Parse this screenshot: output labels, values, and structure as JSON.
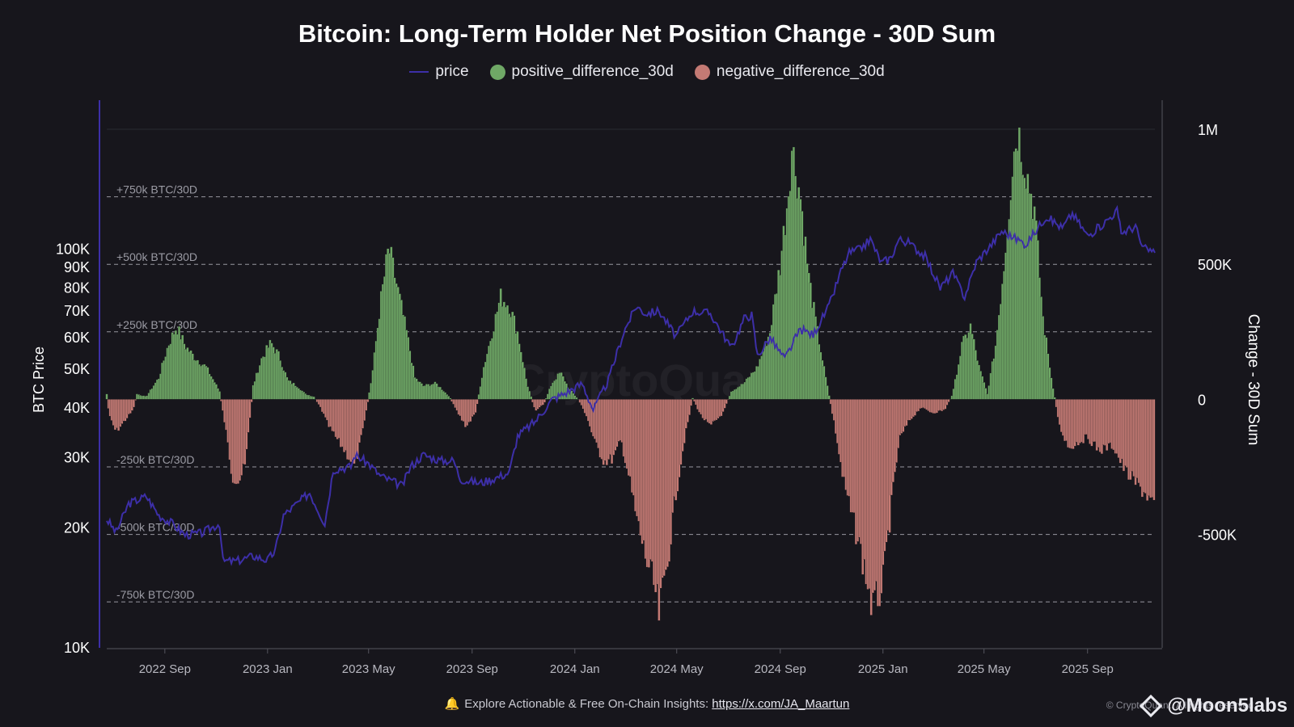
{
  "title": "Bitcoin: Long-Term Holder Net Position Change - 30D Sum",
  "legend": [
    {
      "label": "price",
      "color": "#3d2fa8",
      "shape": "line"
    },
    {
      "label": "positive_difference_30d",
      "color": "#6fa866",
      "shape": "dot"
    },
    {
      "label": "negative_difference_30d",
      "color": "#c47a74",
      "shape": "dot"
    }
  ],
  "footer": {
    "icon": "bell-icon",
    "text": "Explore Actionable & Free On-Chain Insights:",
    "link_text": "https://x.com/JA_Maartun",
    "copyright": "© CryptoQuant. All rights reserved",
    "brand": "@Moon5labs"
  },
  "watermark": "CryptoQuant",
  "chart_data": {
    "type": "bar",
    "title": "Bitcoin: Long-Term Holder Net Position Change - 30D Sum",
    "x_range": [
      "2022-06-24",
      "2025-11-20"
    ],
    "x_ticks": [
      "2022 Sep",
      "2023 Jan",
      "2023 May",
      "2023 Sep",
      "2024 Jan",
      "2024 May",
      "2024 Sep",
      "2025 Jan",
      "2025 May",
      "2025 Sep"
    ],
    "left_axis": {
      "label": "BTC Price",
      "scale": "log",
      "range": [
        10000,
        200000
      ],
      "ticks": [
        10000,
        20000,
        30000,
        40000,
        50000,
        60000,
        70000,
        80000,
        90000,
        100000
      ],
      "tick_labels": [
        "10K",
        "20K",
        "30K",
        "40K",
        "50K",
        "60K",
        "70K",
        "80K",
        "90K",
        "100K"
      ]
    },
    "right_axis": {
      "label": "Change - 30D Sum",
      "range": [
        -920000,
        1000000
      ],
      "ticks": [
        -500000,
        0,
        500000,
        1000000
      ],
      "tick_labels": [
        "-500K",
        "0",
        "500K",
        "1M"
      ]
    },
    "reference_lines": [
      {
        "value": 750000,
        "label": "+750k BTC/30D"
      },
      {
        "value": 500000,
        "label": "+500k BTC/30D"
      },
      {
        "value": 250000,
        "label": "+250k BTC/30D"
      },
      {
        "value": -250000,
        "label": "-250k BTC/30D"
      },
      {
        "value": -500000,
        "label": "-500k BTC/30D"
      },
      {
        "value": -750000,
        "label": "-750k BTC/30D"
      }
    ],
    "price": {
      "name": "price",
      "color": "#3d2fa8",
      "points": [
        [
          "2022-06-24",
          21000
        ],
        [
          "2022-07-05",
          19500
        ],
        [
          "2022-07-20",
          23000
        ],
        [
          "2022-08-10",
          24000
        ],
        [
          "2022-08-25",
          21500
        ],
        [
          "2022-09-10",
          20500
        ],
        [
          "2022-09-25",
          19200
        ],
        [
          "2022-10-15",
          19400
        ],
        [
          "2022-11-05",
          20500
        ],
        [
          "2022-11-09",
          16500
        ],
        [
          "2022-11-25",
          16500
        ],
        [
          "2022-12-15",
          17000
        ],
        [
          "2023-01-01",
          16600
        ],
        [
          "2023-01-10",
          17500
        ],
        [
          "2023-01-20",
          21500
        ],
        [
          "2023-02-05",
          23000
        ],
        [
          "2023-02-20",
          24500
        ],
        [
          "2023-03-10",
          20500
        ],
        [
          "2023-03-20",
          28000
        ],
        [
          "2023-04-10",
          28500
        ],
        [
          "2023-04-15",
          30500
        ],
        [
          "2023-05-01",
          29000
        ],
        [
          "2023-05-15",
          27000
        ],
        [
          "2023-06-10",
          25500
        ],
        [
          "2023-06-20",
          28500
        ],
        [
          "2023-07-05",
          30500
        ],
        [
          "2023-07-25",
          29500
        ],
        [
          "2023-08-10",
          29500
        ],
        [
          "2023-08-18",
          26500
        ],
        [
          "2023-09-10",
          25900
        ],
        [
          "2023-09-25",
          26500
        ],
        [
          "2023-10-15",
          27500
        ],
        [
          "2023-10-25",
          34000
        ],
        [
          "2023-11-15",
          37000
        ],
        [
          "2023-12-05",
          42000
        ],
        [
          "2023-12-20",
          43500
        ],
        [
          "2024-01-10",
          46000
        ],
        [
          "2024-01-23",
          39500
        ],
        [
          "2024-02-10",
          47000
        ],
        [
          "2024-02-28",
          62000
        ],
        [
          "2024-03-14",
          72000
        ],
        [
          "2024-03-25",
          69000
        ],
        [
          "2024-04-10",
          70000
        ],
        [
          "2024-04-30",
          60500
        ],
        [
          "2024-05-20",
          70000
        ],
        [
          "2024-06-10",
          69000
        ],
        [
          "2024-07-05",
          56500
        ],
        [
          "2024-07-20",
          67000
        ],
        [
          "2024-07-29",
          68500
        ],
        [
          "2024-08-05",
          54000
        ],
        [
          "2024-08-20",
          60000
        ],
        [
          "2024-09-06",
          53000
        ],
        [
          "2024-09-25",
          63000
        ],
        [
          "2024-10-10",
          61000
        ],
        [
          "2024-10-29",
          72000
        ],
        [
          "2024-11-12",
          88000
        ],
        [
          "2024-11-22",
          98000
        ],
        [
          "2024-12-05",
          100000
        ],
        [
          "2024-12-17",
          106000
        ],
        [
          "2024-12-30",
          92500
        ],
        [
          "2025-01-10",
          95000
        ],
        [
          "2025-01-20",
          106000
        ],
        [
          "2025-01-31",
          104000
        ],
        [
          "2025-02-20",
          96000
        ],
        [
          "2025-03-10",
          80000
        ],
        [
          "2025-03-25",
          87000
        ],
        [
          "2025-04-08",
          76000
        ],
        [
          "2025-04-22",
          93000
        ],
        [
          "2025-05-12",
          104000
        ],
        [
          "2025-05-22",
          111000
        ],
        [
          "2025-06-20",
          103000
        ],
        [
          "2025-07-14",
          121000
        ],
        [
          "2025-08-02",
          113000
        ],
        [
          "2025-08-14",
          123000
        ],
        [
          "2025-09-01",
          108000
        ],
        [
          "2025-09-20",
          116000
        ],
        [
          "2025-10-06",
          125000
        ],
        [
          "2025-10-11",
          110000
        ],
        [
          "2025-10-28",
          114000
        ],
        [
          "2025-11-05",
          101000
        ],
        [
          "2025-11-20",
          98000
        ]
      ]
    },
    "net_change": {
      "positive_name": "positive_difference_30d",
      "negative_name": "negative_difference_30d",
      "positive_color": "#6fa866",
      "negative_color": "#c47a74",
      "points": [
        [
          "2022-06-24",
          20000
        ],
        [
          "2022-06-27",
          -60000
        ],
        [
          "2022-07-05",
          -120000
        ],
        [
          "2022-07-15",
          -80000
        ],
        [
          "2022-07-25",
          -40000
        ],
        [
          "2022-07-30",
          20000
        ],
        [
          "2022-08-10",
          10000
        ],
        [
          "2022-08-25",
          80000
        ],
        [
          "2022-09-05",
          200000
        ],
        [
          "2022-09-15",
          270000
        ],
        [
          "2022-09-25",
          200000
        ],
        [
          "2022-10-05",
          160000
        ],
        [
          "2022-10-20",
          120000
        ],
        [
          "2022-11-05",
          30000
        ],
        [
          "2022-11-12",
          -100000
        ],
        [
          "2022-11-20",
          -280000
        ],
        [
          "2022-11-28",
          -300000
        ],
        [
          "2022-12-05",
          -250000
        ],
        [
          "2022-12-15",
          50000
        ],
        [
          "2022-12-25",
          150000
        ],
        [
          "2023-01-05",
          210000
        ],
        [
          "2023-01-15",
          160000
        ],
        [
          "2023-01-25",
          70000
        ],
        [
          "2023-02-05",
          50000
        ],
        [
          "2023-02-15",
          20000
        ],
        [
          "2023-02-25",
          10000
        ],
        [
          "2023-03-05",
          -30000
        ],
        [
          "2023-03-15",
          -100000
        ],
        [
          "2023-03-25",
          -150000
        ],
        [
          "2023-04-05",
          -200000
        ],
        [
          "2023-04-15",
          -250000
        ],
        [
          "2023-04-25",
          -100000
        ],
        [
          "2023-05-05",
          80000
        ],
        [
          "2023-05-15",
          350000
        ],
        [
          "2023-05-25",
          560000
        ],
        [
          "2023-06-05",
          400000
        ],
        [
          "2023-06-15",
          250000
        ],
        [
          "2023-06-25",
          80000
        ],
        [
          "2023-07-05",
          50000
        ],
        [
          "2023-07-20",
          60000
        ],
        [
          "2023-08-05",
          10000
        ],
        [
          "2023-08-15",
          -50000
        ],
        [
          "2023-08-25",
          -100000
        ],
        [
          "2023-09-05",
          -50000
        ],
        [
          "2023-09-15",
          120000
        ],
        [
          "2023-09-25",
          250000
        ],
        [
          "2023-10-05",
          380000
        ],
        [
          "2023-10-15",
          350000
        ],
        [
          "2023-10-25",
          250000
        ],
        [
          "2023-11-05",
          60000
        ],
        [
          "2023-11-15",
          -40000
        ],
        [
          "2023-11-25",
          -20000
        ],
        [
          "2023-12-05",
          60000
        ],
        [
          "2023-12-15",
          100000
        ],
        [
          "2023-12-25",
          40000
        ],
        [
          "2024-01-05",
          0
        ],
        [
          "2024-01-15",
          -60000
        ],
        [
          "2024-01-25",
          -160000
        ],
        [
          "2024-02-05",
          -230000
        ],
        [
          "2024-02-15",
          -220000
        ],
        [
          "2024-02-25",
          -150000
        ],
        [
          "2024-03-05",
          -280000
        ],
        [
          "2024-03-15",
          -450000
        ],
        [
          "2024-03-25",
          -580000
        ],
        [
          "2024-04-05",
          -700000
        ],
        [
          "2024-04-10",
          -800000
        ],
        [
          "2024-04-20",
          -600000
        ],
        [
          "2024-04-30",
          -350000
        ],
        [
          "2024-05-10",
          -150000
        ],
        [
          "2024-05-20",
          5000
        ],
        [
          "2024-05-30",
          -60000
        ],
        [
          "2024-06-10",
          -100000
        ],
        [
          "2024-06-25",
          -50000
        ],
        [
          "2024-07-05",
          30000
        ],
        [
          "2024-07-20",
          60000
        ],
        [
          "2024-08-05",
          120000
        ],
        [
          "2024-08-20",
          250000
        ],
        [
          "2024-09-01",
          500000
        ],
        [
          "2024-09-10",
          750000
        ],
        [
          "2024-09-15",
          930000
        ],
        [
          "2024-09-25",
          750000
        ],
        [
          "2024-10-05",
          450000
        ],
        [
          "2024-10-15",
          250000
        ],
        [
          "2024-10-25",
          80000
        ],
        [
          "2024-11-05",
          -100000
        ],
        [
          "2024-11-15",
          -300000
        ],
        [
          "2024-11-25",
          -430000
        ],
        [
          "2024-12-05",
          -550000
        ],
        [
          "2024-12-15",
          -700000
        ],
        [
          "2024-12-20",
          -780000
        ],
        [
          "2025-01-01",
          -680000
        ],
        [
          "2025-01-10",
          -420000
        ],
        [
          "2025-01-20",
          -150000
        ],
        [
          "2025-02-01",
          -80000
        ],
        [
          "2025-02-15",
          -30000
        ],
        [
          "2025-03-01",
          -50000
        ],
        [
          "2025-03-15",
          -40000
        ],
        [
          "2025-03-25",
          20000
        ],
        [
          "2025-04-05",
          200000
        ],
        [
          "2025-04-15",
          270000
        ],
        [
          "2025-04-25",
          120000
        ],
        [
          "2025-05-05",
          20000
        ],
        [
          "2025-05-15",
          200000
        ],
        [
          "2025-05-25",
          500000
        ],
        [
          "2025-06-05",
          900000
        ],
        [
          "2025-06-10",
          1000000
        ],
        [
          "2025-06-20",
          850000
        ],
        [
          "2025-06-30",
          700000
        ],
        [
          "2025-07-10",
          300000
        ],
        [
          "2025-07-20",
          80000
        ],
        [
          "2025-07-30",
          -100000
        ],
        [
          "2025-08-10",
          -180000
        ],
        [
          "2025-08-20",
          -160000
        ],
        [
          "2025-09-01",
          -140000
        ],
        [
          "2025-09-15",
          -190000
        ],
        [
          "2025-10-01",
          -170000
        ],
        [
          "2025-10-15",
          -260000
        ],
        [
          "2025-10-25",
          -300000
        ],
        [
          "2025-11-10",
          -350000
        ],
        [
          "2025-11-20",
          -410000
        ]
      ]
    }
  }
}
